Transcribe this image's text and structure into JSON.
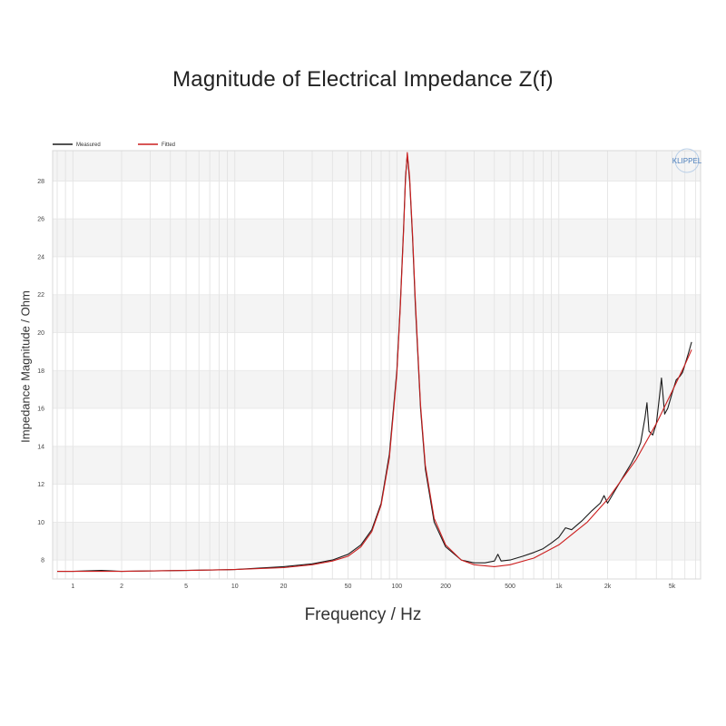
{
  "chart_data": {
    "type": "line",
    "title": "Magnitude of Electrical Impedance Z(f)",
    "xlabel": "Frequency / Hz",
    "ylabel": "Impedance Magnitude / Ohm",
    "xscale": "log",
    "xlim": [
      0.75,
      7500
    ],
    "ylim": [
      7,
      29.6
    ],
    "grid": true,
    "legend_position": "top-left",
    "watermark": "KLIPPEL",
    "x_ticks": [
      {
        "value": 1,
        "label": "1"
      },
      {
        "value": 2,
        "label": "2"
      },
      {
        "value": 5,
        "label": "5"
      },
      {
        "value": 10,
        "label": "10"
      },
      {
        "value": 20,
        "label": "20"
      },
      {
        "value": 50,
        "label": "50"
      },
      {
        "value": 100,
        "label": "100"
      },
      {
        "value": 200,
        "label": "200"
      },
      {
        "value": 500,
        "label": "500"
      },
      {
        "value": 1000,
        "label": "1k"
      },
      {
        "value": 2000,
        "label": "2k"
      },
      {
        "value": 5000,
        "label": "5k"
      }
    ],
    "y_ticks": [
      8,
      10,
      12,
      14,
      16,
      18,
      20,
      22,
      24,
      26,
      28
    ],
    "series": [
      {
        "name": "Measured",
        "color": "#1a1a1a",
        "x": [
          0.8,
          1,
          1.5,
          2,
          5,
          10,
          20,
          30,
          40,
          50,
          60,
          70,
          80,
          90,
          100,
          105,
          110,
          113,
          116,
          120,
          125,
          130,
          140,
          150,
          170,
          200,
          250,
          300,
          350,
          400,
          420,
          440,
          500,
          600,
          700,
          800,
          900,
          1000,
          1100,
          1200,
          1400,
          1600,
          1800,
          1900,
          2000,
          2200,
          2500,
          2800,
          3000,
          3200,
          3400,
          3500,
          3600,
          3800,
          4000,
          4200,
          4300,
          4500,
          4700,
          5000,
          5300,
          5600,
          5800,
          6000,
          6300,
          6600
        ],
        "y": [
          7.4,
          7.4,
          7.45,
          7.4,
          7.45,
          7.5,
          7.65,
          7.8,
          8.0,
          8.3,
          8.8,
          9.6,
          11.0,
          13.6,
          18.0,
          21.5,
          25.5,
          28.2,
          29.4,
          28.0,
          25.0,
          21.5,
          16.0,
          12.8,
          10.0,
          8.7,
          8.0,
          7.85,
          7.85,
          7.95,
          8.3,
          7.95,
          8.0,
          8.2,
          8.4,
          8.6,
          8.9,
          9.2,
          9.7,
          9.6,
          10.1,
          10.6,
          11.0,
          11.4,
          11.0,
          11.6,
          12.4,
          13.1,
          13.6,
          14.2,
          15.5,
          16.3,
          14.8,
          14.6,
          15.2,
          16.8,
          17.6,
          15.7,
          16.0,
          16.8,
          17.5,
          17.7,
          17.9,
          18.3,
          18.9,
          19.5
        ]
      },
      {
        "name": "Fitted",
        "color": "#cc1f1f",
        "x": [
          0.8,
          1,
          2,
          5,
          10,
          20,
          30,
          40,
          50,
          60,
          70,
          80,
          90,
          100,
          105,
          110,
          113,
          116,
          120,
          125,
          130,
          140,
          150,
          170,
          200,
          250,
          300,
          400,
          500,
          700,
          1000,
          1500,
          2000,
          3000,
          4000,
          5000,
          6000,
          6600
        ],
        "y": [
          7.4,
          7.4,
          7.4,
          7.45,
          7.5,
          7.6,
          7.75,
          7.95,
          8.2,
          8.7,
          9.5,
          10.9,
          13.4,
          17.8,
          21.3,
          25.3,
          28.0,
          29.5,
          28.2,
          25.2,
          21.8,
          16.2,
          13.0,
          10.2,
          8.8,
          8.0,
          7.75,
          7.65,
          7.75,
          8.1,
          8.8,
          10.0,
          11.2,
          13.3,
          15.2,
          16.9,
          18.3,
          19.1
        ]
      }
    ]
  }
}
